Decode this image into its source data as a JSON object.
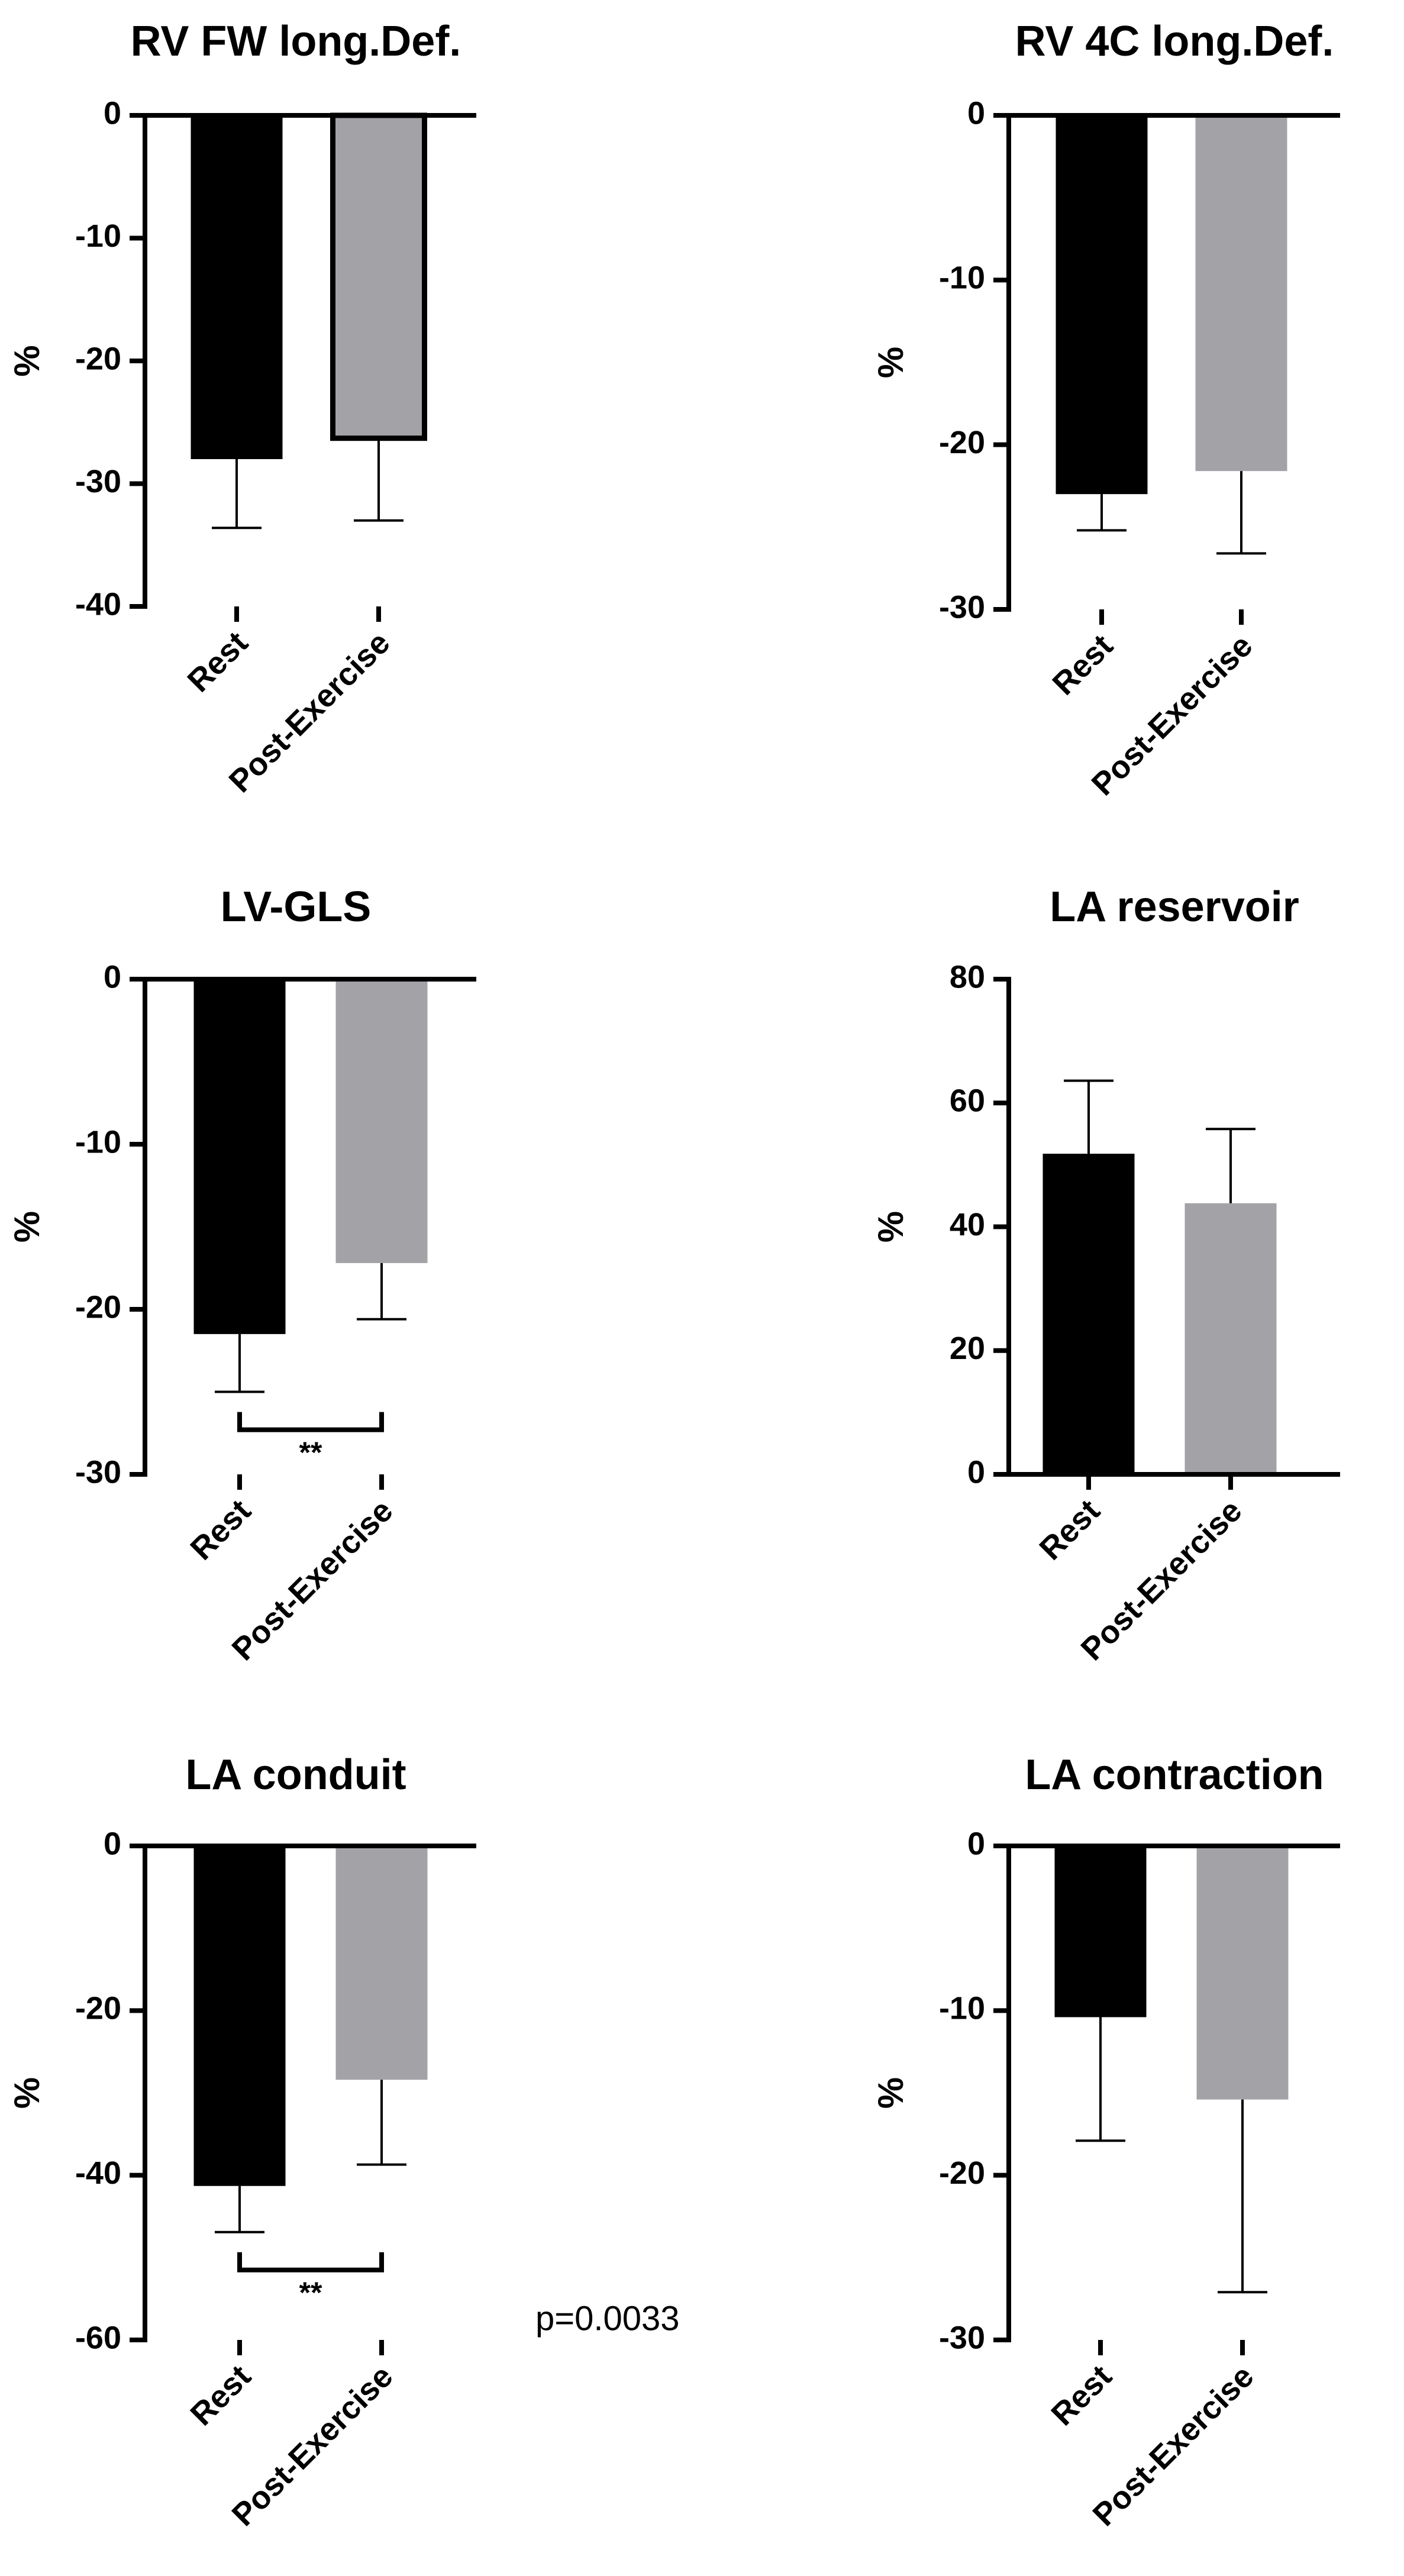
{
  "chart_data": [
    {
      "type": "bar",
      "title": "RV FW long.Def.",
      "ylabel": "%",
      "categories": [
        "Rest",
        "Post-Exercise"
      ],
      "values": [
        -28.0,
        -26.3
      ],
      "errors": [
        5.6,
        6.7
      ],
      "colors": [
        "#000000",
        "#a3a3a7"
      ],
      "ylim": [
        -40,
        0
      ],
      "yticks": [
        0,
        -10,
        -20,
        -30,
        -40
      ],
      "ytick_labels": [
        "0",
        "-10",
        "-20",
        "-30",
        "-40"
      ],
      "significance": null
    },
    {
      "type": "bar",
      "title": "RV 4C long.Def.",
      "ylabel": "%",
      "categories": [
        "Rest",
        "Post-Exercise"
      ],
      "values": [
        -23.0,
        -21.6
      ],
      "errors": [
        2.2,
        5.0
      ],
      "colors": [
        "#000000",
        "#a3a3a7"
      ],
      "ylim": [
        -30,
        0
      ],
      "yticks": [
        0,
        -10,
        -20,
        -30
      ],
      "ytick_labels": [
        "0",
        "-10",
        "-20",
        "-30"
      ],
      "significance": null
    },
    {
      "type": "bar",
      "title": "LV-GLS",
      "ylabel": "%",
      "categories": [
        "Rest",
        "Post-Exercise"
      ],
      "values": [
        -21.5,
        -17.2
      ],
      "errors": [
        3.5,
        3.4
      ],
      "colors": [
        "#000000",
        "#a3a3a7"
      ],
      "ylim": [
        -30,
        0
      ],
      "yticks": [
        0,
        -10,
        -20,
        -30
      ],
      "ytick_labels": [
        "0",
        "-10",
        "-20",
        "-30"
      ],
      "significance": {
        "label": "**",
        "y": -27.3
      }
    },
    {
      "type": "bar",
      "title": "LA reservoir",
      "ylabel": "%",
      "categories": [
        "Rest",
        "Post-Exercise"
      ],
      "values": [
        51.8,
        43.8
      ],
      "errors": [
        11.8,
        12.0
      ],
      "colors": [
        "#000000",
        "#a3a3a7"
      ],
      "ylim": [
        0,
        80
      ],
      "yticks": [
        0,
        20,
        40,
        60,
        80
      ],
      "ytick_labels": [
        "0",
        "20",
        "40",
        "60",
        "80"
      ],
      "significance": null
    },
    {
      "type": "bar",
      "title": "LA conduit",
      "ylabel": "%",
      "categories": [
        "Rest",
        "Post-Exercise"
      ],
      "values": [
        -41.3,
        -28.4
      ],
      "errors": [
        5.6,
        10.3
      ],
      "colors": [
        "#000000",
        "#a3a3a7"
      ],
      "ylim": [
        -60,
        0
      ],
      "yticks": [
        0,
        -20,
        -40,
        -60
      ],
      "ytick_labels": [
        "0",
        "-20",
        "-40",
        "-60"
      ],
      "significance": {
        "label": "**",
        "y": -51.5
      },
      "annotation": "p=0.0033"
    },
    {
      "type": "bar",
      "title": "LA contraction",
      "ylabel": "%",
      "categories": [
        "Rest",
        "Post-Exercise"
      ],
      "values": [
        -10.4,
        -15.4
      ],
      "errors": [
        7.5,
        11.7
      ],
      "colors": [
        "#000000",
        "#a3a3a7"
      ],
      "ylim": [
        -30,
        0
      ],
      "yticks": [
        0,
        -10,
        -20,
        -30
      ],
      "ytick_labels": [
        "0",
        "-10",
        "-20",
        "-30"
      ],
      "significance": null
    }
  ]
}
